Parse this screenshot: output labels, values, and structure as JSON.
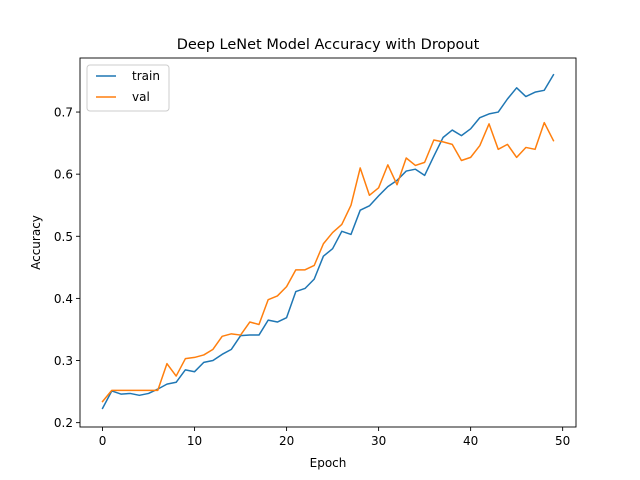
{
  "chart_data": {
    "type": "line",
    "title": "Deep LeNet Model Accuracy with Dropout",
    "xlabel": "Epoch",
    "ylabel": "Accuracy",
    "xlim": [
      -2.45,
      51.45
    ],
    "ylim": [
      0.193,
      0.787
    ],
    "xticks": [
      0,
      10,
      20,
      30,
      40,
      50
    ],
    "yticks": [
      0.2,
      0.3,
      0.4,
      0.5,
      0.6,
      0.7
    ],
    "xtick_labels": [
      "0",
      "10",
      "20",
      "30",
      "40",
      "50"
    ],
    "ytick_labels": [
      "0.2",
      "0.3",
      "0.4",
      "0.5",
      "0.6",
      "0.7"
    ],
    "grid": false,
    "legend_position": "top-left",
    "x": [
      0,
      1,
      2,
      3,
      4,
      5,
      6,
      7,
      8,
      9,
      10,
      11,
      12,
      13,
      14,
      15,
      16,
      17,
      18,
      19,
      20,
      21,
      22,
      23,
      24,
      25,
      26,
      27,
      28,
      29,
      30,
      31,
      32,
      33,
      34,
      35,
      36,
      37,
      38,
      39,
      40,
      41,
      42,
      43,
      44,
      45,
      46,
      47,
      48,
      49
    ],
    "series": [
      {
        "name": "train",
        "color": "#1f77b4",
        "values": [
          0.223,
          0.251,
          0.246,
          0.247,
          0.244,
          0.247,
          0.254,
          0.262,
          0.265,
          0.285,
          0.282,
          0.297,
          0.3,
          0.31,
          0.318,
          0.34,
          0.341,
          0.341,
          0.365,
          0.362,
          0.369,
          0.411,
          0.416,
          0.431,
          0.468,
          0.48,
          0.508,
          0.503,
          0.542,
          0.549,
          0.565,
          0.58,
          0.59,
          0.605,
          0.608,
          0.598,
          0.629,
          0.659,
          0.671,
          0.662,
          0.673,
          0.691,
          0.697,
          0.7,
          0.721,
          0.739,
          0.725,
          0.732,
          0.735,
          0.76
        ]
      },
      {
        "name": "val",
        "color": "#ff7f0e",
        "values": [
          0.234,
          0.252,
          0.252,
          0.252,
          0.252,
          0.252,
          0.252,
          0.295,
          0.275,
          0.303,
          0.305,
          0.309,
          0.318,
          0.339,
          0.343,
          0.341,
          0.362,
          0.358,
          0.398,
          0.404,
          0.419,
          0.446,
          0.446,
          0.453,
          0.488,
          0.506,
          0.519,
          0.55,
          0.61,
          0.566,
          0.578,
          0.615,
          0.583,
          0.626,
          0.614,
          0.619,
          0.655,
          0.652,
          0.648,
          0.622,
          0.627,
          0.646,
          0.681,
          0.64,
          0.648,
          0.627,
          0.643,
          0.64,
          0.683,
          0.654
        ]
      }
    ]
  }
}
